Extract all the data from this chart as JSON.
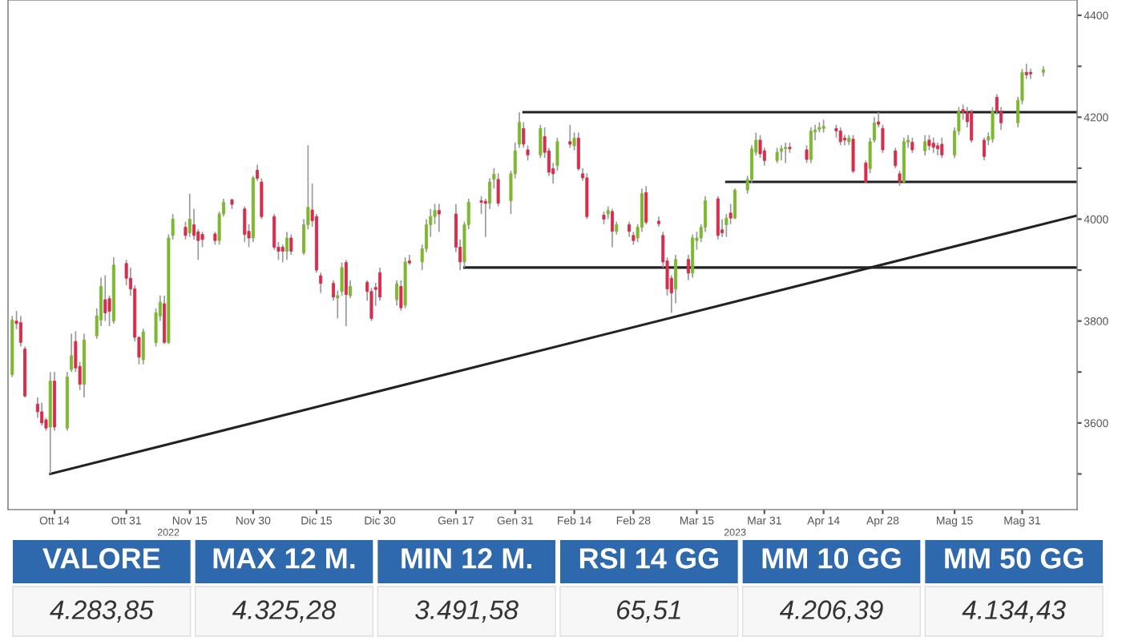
{
  "chart_data": {
    "type": "candlestick",
    "x": [
      "2022-10-04",
      "2022-10-05",
      "2022-10-06",
      "2022-10-07",
      "2022-10-10",
      "2022-10-11",
      "2022-10-12",
      "2022-10-13",
      "2022-10-14",
      "2022-10-17",
      "2022-10-18",
      "2022-10-19",
      "2022-10-20",
      "2022-10-21",
      "2022-10-24",
      "2022-10-25",
      "2022-10-26",
      "2022-10-27",
      "2022-10-28",
      "2022-10-31",
      "2022-11-01",
      "2022-11-02",
      "2022-11-03",
      "2022-11-04",
      "2022-11-07",
      "2022-11-08",
      "2022-11-09",
      "2022-11-10",
      "2022-11-11",
      "2022-11-14",
      "2022-11-15",
      "2022-11-16",
      "2022-11-17",
      "2022-11-18",
      "2022-11-21",
      "2022-11-22",
      "2022-11-23",
      "2022-11-25",
      "2022-11-28",
      "2022-11-29",
      "2022-11-30",
      "2022-12-01",
      "2022-12-02",
      "2022-12-05",
      "2022-12-06",
      "2022-12-07",
      "2022-12-08",
      "2022-12-09",
      "2022-12-12",
      "2022-12-13",
      "2022-12-14",
      "2022-12-15",
      "2022-12-16",
      "2022-12-19",
      "2022-12-20",
      "2022-12-21",
      "2022-12-22",
      "2022-12-23",
      "2022-12-27",
      "2022-12-28",
      "2022-12-29",
      "2022-12-30",
      "2023-01-03",
      "2023-01-04",
      "2023-01-05",
      "2023-01-06",
      "2023-01-09",
      "2023-01-10",
      "2023-01-11",
      "2023-01-12",
      "2023-01-13",
      "2023-01-17",
      "2023-01-18",
      "2023-01-19",
      "2023-01-20",
      "2023-01-23",
      "2023-01-24",
      "2023-01-25",
      "2023-01-26",
      "2023-01-27",
      "2023-01-30",
      "2023-01-31",
      "2023-02-01",
      "2023-02-02",
      "2023-02-03",
      "2023-02-06",
      "2023-02-07",
      "2023-02-08",
      "2023-02-09",
      "2023-02-10",
      "2023-02-13",
      "2023-02-14",
      "2023-02-15",
      "2023-02-16",
      "2023-02-17",
      "2023-02-21",
      "2023-02-22",
      "2023-02-23",
      "2023-02-24",
      "2023-02-27",
      "2023-02-28",
      "2023-03-01",
      "2023-03-02",
      "2023-03-03",
      "2023-03-06",
      "2023-03-07",
      "2023-03-08",
      "2023-03-09",
      "2023-03-10",
      "2023-03-13",
      "2023-03-14",
      "2023-03-15",
      "2023-03-16",
      "2023-03-17",
      "2023-03-20",
      "2023-03-21",
      "2023-03-22",
      "2023-03-23",
      "2023-03-24",
      "2023-03-27",
      "2023-03-28",
      "2023-03-29",
      "2023-03-30",
      "2023-03-31",
      "2023-04-03",
      "2023-04-04",
      "2023-04-05",
      "2023-04-06",
      "2023-04-10",
      "2023-04-11",
      "2023-04-12",
      "2023-04-13",
      "2023-04-14",
      "2023-04-17",
      "2023-04-18",
      "2023-04-19",
      "2023-04-20",
      "2023-04-21",
      "2023-04-24",
      "2023-04-25",
      "2023-04-26",
      "2023-04-27",
      "2023-04-28",
      "2023-05-01",
      "2023-05-02",
      "2023-05-03",
      "2023-05-04",
      "2023-05-05",
      "2023-05-08",
      "2023-05-09",
      "2023-05-10",
      "2023-05-11",
      "2023-05-12",
      "2023-05-15",
      "2023-05-16",
      "2023-05-17",
      "2023-05-18",
      "2023-05-19",
      "2023-05-22",
      "2023-05-23",
      "2023-05-24",
      "2023-05-25",
      "2023-05-26",
      "2023-05-30",
      "2023-05-31",
      "2023-06-01",
      "2023-06-02",
      "2023-06-05"
    ],
    "ohlc": [
      [
        3695,
        3810,
        3690,
        3802
      ],
      [
        3800,
        3820,
        3784,
        3795
      ],
      [
        3797,
        3810,
        3750,
        3758
      ],
      [
        3745,
        3750,
        3650,
        3653
      ],
      [
        3637,
        3650,
        3610,
        3622
      ],
      [
        3622,
        3640,
        3595,
        3600
      ],
      [
        3606,
        3610,
        3585,
        3590
      ],
      [
        3592,
        3700,
        3500,
        3682
      ],
      [
        3682,
        3700,
        3585,
        3592
      ],
      [
        3590,
        3700,
        3585,
        3690
      ],
      [
        3705,
        3775,
        3700,
        3732
      ],
      [
        3760,
        3780,
        3700,
        3708
      ],
      [
        3711,
        3720,
        3665,
        3676
      ],
      [
        3676,
        3775,
        3650,
        3763
      ],
      [
        3771,
        3825,
        3765,
        3810
      ],
      [
        3802,
        3885,
        3790,
        3868
      ],
      [
        3842,
        3890,
        3800,
        3816
      ],
      [
        3844,
        3850,
        3790,
        3819
      ],
      [
        3800,
        3925,
        3795,
        3910
      ],
      [
        3913,
        3920,
        3870,
        3884
      ],
      [
        3884,
        3905,
        3850,
        3863
      ],
      [
        3863,
        3870,
        3760,
        3768
      ],
      [
        3768,
        3770,
        3715,
        3729
      ],
      [
        3724,
        3785,
        3715,
        3779
      ],
      [
        3758,
        3825,
        3750,
        3816
      ],
      [
        3810,
        3850,
        3800,
        3837
      ],
      [
        3834,
        3850,
        3755,
        3758
      ],
      [
        3758,
        3970,
        3755,
        3963
      ],
      [
        3968,
        4010,
        3960,
        4000
      ],
      [
        3984,
        3995,
        3960,
        3968
      ],
      [
        3973,
        4050,
        3965,
        4000
      ],
      [
        3989,
        4020,
        3960,
        3968
      ],
      [
        3975,
        3980,
        3920,
        3958
      ],
      [
        3970,
        3975,
        3945,
        3960
      ],
      [
        3971,
        3975,
        3950,
        3958
      ],
      [
        3958,
        4015,
        3950,
        4010
      ],
      [
        4010,
        4040,
        4005,
        4033
      ],
      [
        4038,
        4040,
        4020,
        4029
      ],
      [
        4020,
        4025,
        3955,
        3970
      ],
      [
        3976,
        3990,
        3945,
        3963
      ],
      [
        3963,
        4085,
        3955,
        4081
      ],
      [
        4096,
        4107,
        4075,
        4080
      ],
      [
        4073,
        4080,
        4000,
        4005
      ],
      [
        4005,
        4010,
        3940,
        3945
      ],
      [
        3945,
        3955,
        3920,
        3937
      ],
      [
        3945,
        3950,
        3915,
        3937
      ],
      [
        3937,
        3975,
        3920,
        3963
      ],
      [
        3963,
        3970,
        3930,
        3937
      ],
      [
        3934,
        4000,
        3930,
        3989
      ],
      [
        3989,
        4145,
        3980,
        4023
      ],
      [
        4018,
        4070,
        3985,
        3997
      ],
      [
        4005,
        4010,
        3895,
        3900
      ],
      [
        3889,
        3895,
        3855,
        3874
      ],
      [
        3874,
        3880,
        3840,
        3847
      ],
      [
        3845,
        3860,
        3805,
        3850
      ],
      [
        3858,
        3915,
        3850,
        3905
      ],
      [
        3915,
        3920,
        3790,
        3852
      ],
      [
        3850,
        3880,
        3845,
        3868
      ],
      [
        3876,
        3880,
        3840,
        3858
      ],
      [
        3858,
        3865,
        3800,
        3805
      ],
      [
        3866,
        3875,
        3830,
        3862
      ],
      [
        3895,
        3905,
        3840,
        3847
      ],
      [
        3842,
        3880,
        3830,
        3873
      ],
      [
        3868,
        3880,
        3820,
        3826
      ],
      [
        3831,
        3925,
        3825,
        3916
      ],
      [
        3918,
        3930,
        3910,
        3914
      ],
      [
        3916,
        3950,
        3900,
        3942
      ],
      [
        3942,
        4000,
        3935,
        3989
      ],
      [
        3989,
        4020,
        3965,
        4005
      ],
      [
        4005,
        4030,
        3990,
        4017
      ],
      [
        4017,
        4030,
        3975,
        4010
      ],
      [
        4010,
        4030,
        3935,
        3945
      ],
      [
        3945,
        3960,
        3900,
        3916
      ],
      [
        3916,
        3995,
        3905,
        3989
      ],
      [
        3989,
        4040,
        3980,
        4033
      ],
      [
        4036,
        4045,
        4010,
        4033
      ],
      [
        4035,
        4040,
        3965,
        4031
      ],
      [
        4031,
        4080,
        4020,
        4073
      ],
      [
        4078,
        4100,
        4060,
        4088
      ],
      [
        4078,
        4090,
        4025,
        4031
      ],
      [
        4036,
        4095,
        4010,
        4089
      ],
      [
        4089,
        4150,
        4080,
        4134
      ],
      [
        4147,
        4210,
        4140,
        4190
      ],
      [
        4178,
        4190,
        4140,
        4147
      ],
      [
        4136,
        4145,
        4115,
        4126
      ],
      [
        4126,
        4185,
        4120,
        4178
      ],
      [
        4162,
        4180,
        4120,
        4131
      ],
      [
        4134,
        4140,
        4085,
        4092
      ],
      [
        4099,
        4110,
        4070,
        4089
      ],
      [
        4105,
        4160,
        4095,
        4152
      ],
      [
        4152,
        4185,
        4140,
        4147
      ],
      [
        4144,
        4170,
        4135,
        4159
      ],
      [
        4159,
        4170,
        4095,
        4099
      ],
      [
        4089,
        4100,
        4075,
        4081
      ],
      [
        4081,
        4090,
        4000,
        4005
      ],
      [
        4008,
        4015,
        3990,
        4000
      ],
      [
        4010,
        4025,
        4000,
        4017
      ],
      [
        4015,
        4020,
        3945,
        3976
      ],
      [
        3976,
        3995,
        3970,
        3989
      ],
      [
        3989,
        3995,
        3965,
        3976
      ],
      [
        3968,
        3975,
        3950,
        3958
      ],
      [
        3963,
        3990,
        3955,
        3984
      ],
      [
        3984,
        4060,
        3975,
        4050
      ],
      [
        4052,
        4065,
        3990,
        3994
      ],
      [
        3996,
        4005,
        3985,
        3991
      ],
      [
        3968,
        3975,
        3905,
        3916
      ],
      [
        3918,
        3925,
        3850,
        3863
      ],
      [
        3884,
        3890,
        3816,
        3855
      ],
      [
        3863,
        3930,
        3835,
        3921
      ],
      [
        3921,
        3930,
        3880,
        3894
      ],
      [
        3894,
        3970,
        3885,
        3963
      ],
      [
        3958,
        3975,
        3940,
        3963
      ],
      [
        3963,
        3990,
        3955,
        3984
      ],
      [
        3984,
        4045,
        3975,
        4036
      ],
      [
        4040,
        4045,
        3960,
        3968
      ],
      [
        3979,
        4000,
        3965,
        3973
      ],
      [
        3989,
        4010,
        3965,
        4002
      ],
      [
        4012,
        4030,
        3990,
        4002
      ],
      [
        4002,
        4060,
        4000,
        4057
      ],
      [
        4057,
        4085,
        4050,
        4078
      ],
      [
        4078,
        4145,
        4070,
        4138
      ],
      [
        4131,
        4170,
        4125,
        4155
      ],
      [
        4155,
        4165,
        4120,
        4128
      ],
      [
        4134,
        4140,
        4105,
        4115
      ],
      [
        4115,
        4140,
        4110,
        4131
      ],
      [
        4133,
        4145,
        4115,
        4138
      ],
      [
        4138,
        4150,
        4110,
        4141
      ],
      [
        4141,
        4150,
        4130,
        4138
      ],
      [
        4136,
        4145,
        4110,
        4117
      ],
      [
        4117,
        4180,
        4110,
        4173
      ],
      [
        4171,
        4185,
        4155,
        4175
      ],
      [
        4176,
        4190,
        4170,
        4180
      ],
      [
        4178,
        4195,
        4170,
        4182
      ],
      [
        4178,
        4185,
        4160,
        4173
      ],
      [
        4173,
        4180,
        4145,
        4152
      ],
      [
        4159,
        4165,
        4145,
        4155
      ],
      [
        4152,
        4165,
        4145,
        4159
      ],
      [
        4157,
        4165,
        4090,
        4094
      ],
      [
        4110,
        4115,
        4070,
        4073
      ],
      [
        4099,
        4160,
        4090,
        4152
      ],
      [
        4155,
        4200,
        4150,
        4189
      ],
      [
        4191,
        4210,
        4180,
        4186
      ],
      [
        4178,
        4185,
        4130,
        4136
      ],
      [
        4134,
        4140,
        4100,
        4105
      ],
      [
        4089,
        4095,
        4065,
        4073
      ],
      [
        4073,
        4160,
        4070,
        4152
      ],
      [
        4151,
        4165,
        4140,
        4155
      ],
      [
        4151,
        4160,
        4130,
        4136
      ],
      [
        4134,
        4165,
        4125,
        4152
      ],
      [
        4155,
        4165,
        4135,
        4144
      ],
      [
        4149,
        4160,
        4130,
        4141
      ],
      [
        4144,
        4150,
        4125,
        4138
      ],
      [
        4147,
        4160,
        4120,
        4126
      ],
      [
        4126,
        4180,
        4120,
        4173
      ],
      [
        4173,
        4220,
        4165,
        4212
      ],
      [
        4215,
        4225,
        4195,
        4210
      ],
      [
        4210,
        4220,
        4180,
        4191
      ],
      [
        4210,
        4215,
        4150,
        4155
      ],
      [
        4155,
        4160,
        4115,
        4123
      ],
      [
        4155,
        4170,
        4145,
        4162
      ],
      [
        4157,
        4220,
        4150,
        4212
      ],
      [
        4239,
        4245,
        4205,
        4212
      ],
      [
        4212,
        4220,
        4175,
        4189
      ],
      [
        4189,
        4240,
        4180,
        4233
      ],
      [
        4233,
        4295,
        4225,
        4288
      ],
      [
        4288,
        4305,
        4275,
        4283
      ],
      [
        4288,
        4295,
        4275,
        4285
      ],
      [
        4288,
        4300,
        4280,
        4293
      ]
    ],
    "colors": [
      "#7cb82f",
      "#d62d4b",
      "#d62d4b",
      "#d62d4b",
      "#d62d4b",
      "#d62d4b",
      "#d62d4b",
      "#7cb82f",
      "#d62d4b",
      "#7cb82f",
      "#7cb82f",
      "#d62d4b",
      "#d62d4b",
      "#7cb82f",
      "#7cb82f",
      "#7cb82f",
      "#d62d4b",
      "#d62d4b",
      "#7cb82f",
      "#d62d4b",
      "#d62d4b",
      "#d62d4b",
      "#d62d4b",
      "#7cb82f",
      "#7cb82f",
      "#7cb82f",
      "#d62d4b",
      "#7cb82f",
      "#7cb82f",
      "#d62d4b",
      "#7cb82f",
      "#d62d4b",
      "#d62d4b",
      "#d62d4b",
      "#d62d4b",
      "#7cb82f",
      "#7cb82f",
      "#d62d4b",
      "#d62d4b",
      "#d62d4b",
      "#7cb82f",
      "#d62d4b",
      "#d62d4b",
      "#d62d4b",
      "#d62d4b",
      "#d62d4b",
      "#7cb82f",
      "#d62d4b",
      "#7cb82f",
      "#7cb82f",
      "#d62d4b",
      "#d62d4b",
      "#d62d4b",
      "#d62d4b",
      "#7cb82f",
      "#7cb82f",
      "#d62d4b",
      "#7cb82f",
      "#d62d4b",
      "#d62d4b",
      "#d62d4b",
      "#d62d4b",
      "#7cb82f",
      "#d62d4b",
      "#7cb82f",
      "#d62d4b",
      "#7cb82f",
      "#7cb82f",
      "#7cb82f",
      "#7cb82f",
      "#d62d4b",
      "#d62d4b",
      "#d62d4b",
      "#7cb82f",
      "#7cb82f",
      "#d62d4b",
      "#d62d4b",
      "#7cb82f",
      "#7cb82f",
      "#d62d4b",
      "#7cb82f",
      "#7cb82f",
      "#7cb82f",
      "#d62d4b",
      "#d62d4b",
      "#7cb82f",
      "#d62d4b",
      "#d62d4b",
      "#d62d4b",
      "#7cb82f",
      "#d62d4b",
      "#7cb82f",
      "#d62d4b",
      "#d62d4b",
      "#d62d4b",
      "#d62d4b",
      "#7cb82f",
      "#d62d4b",
      "#7cb82f",
      "#d62d4b",
      "#d62d4b",
      "#7cb82f",
      "#7cb82f",
      "#d62d4b",
      "#d62d4b",
      "#d62d4b",
      "#d62d4b",
      "#d62d4b",
      "#7cb82f",
      "#d62d4b",
      "#7cb82f",
      "#7cb82f",
      "#7cb82f",
      "#7cb82f",
      "#d62d4b",
      "#d62d4b",
      "#7cb82f",
      "#d62d4b",
      "#7cb82f",
      "#7cb82f",
      "#7cb82f",
      "#7cb82f",
      "#d62d4b",
      "#d62d4b",
      "#7cb82f",
      "#7cb82f",
      "#7cb82f",
      "#d62d4b",
      "#d62d4b",
      "#7cb82f",
      "#7cb82f",
      "#7cb82f",
      "#7cb82f",
      "#d62d4b",
      "#d62d4b",
      "#d62d4b",
      "#7cb82f",
      "#d62d4b",
      "#d62d4b",
      "#7cb82f",
      "#7cb82f",
      "#d62d4b",
      "#d62d4b",
      "#d62d4b",
      "#d62d4b",
      "#7cb82f",
      "#7cb82f",
      "#d62d4b",
      "#7cb82f",
      "#d62d4b",
      "#d62d4b",
      "#d62d4b",
      "#d62d4b",
      "#7cb82f",
      "#7cb82f",
      "#d62d4b",
      "#d62d4b",
      "#d62d4b",
      "#d62d4b",
      "#7cb82f",
      "#7cb82f",
      "#d62d4b",
      "#d62d4b",
      "#7cb82f",
      "#7cb82f",
      "#d62d4b",
      "#d62d4b",
      "#7cb82f"
    ],
    "series": [
      {
        "type": "line",
        "color": "#222222",
        "x": [
          "2022-10-13",
          "2023-06-13"
        ],
        "values": [
          3500,
          4007
        ]
      },
      {
        "type": "line",
        "color": "#222222",
        "x": [
          "2023-02-02",
          "2023-06-13"
        ],
        "values": [
          4210,
          4210
        ]
      },
      {
        "type": "line",
        "color": "#222222",
        "x": [
          "2023-03-22",
          "2023-06-13"
        ],
        "values": [
          4073,
          4073
        ]
      },
      {
        "type": "line",
        "color": "#222222",
        "x": [
          "2023-01-19",
          "2023-06-13"
        ],
        "values": [
          3905,
          3905
        ]
      }
    ],
    "xlim": [
      "2022-10-03",
      "2023-06-13"
    ],
    "xticks": [
      {
        "value": "2022-10-14",
        "label": "Ott 14"
      },
      {
        "value": "2022-10-31",
        "label": "Ott 31"
      },
      {
        "value": "2022-11-15",
        "label": "Nov 15"
      },
      {
        "value": "2022-11-30",
        "label": "Nov 30"
      },
      {
        "value": "2022-12-15",
        "label": "Dic 15"
      },
      {
        "value": "2022-12-30",
        "label": "Dic 30"
      },
      {
        "value": "2023-01-17",
        "label": "Gen 17"
      },
      {
        "value": "2023-01-31",
        "label": "Gen 31"
      },
      {
        "value": "2023-02-14",
        "label": "Feb 14"
      },
      {
        "value": "2023-02-28",
        "label": "Feb 28"
      },
      {
        "value": "2023-03-15",
        "label": "Mar 15"
      },
      {
        "value": "2023-03-31",
        "label": "Mar 31"
      },
      {
        "value": "2023-04-14",
        "label": "Apr 14"
      },
      {
        "value": "2023-04-28",
        "label": "Apr 28"
      },
      {
        "value": "2023-05-15",
        "label": "Mag 15"
      },
      {
        "value": "2023-05-31",
        "label": "Mag 31"
      }
    ],
    "ylim": [
      3430,
      4430
    ],
    "yticks": [
      {
        "value": 3500,
        "label": null
      },
      3600,
      {
        "value": 3700,
        "label": null
      },
      3800,
      {
        "value": 3900,
        "label": null
      },
      4000,
      {
        "value": 4100,
        "label": null
      },
      4200,
      {
        "value": 4300,
        "label": null
      },
      4400
    ],
    "grid": false,
    "annotations": [
      "2022",
      "2023",
      "VALORE",
      "MAX 12 M.",
      "MIN 12 M.",
      "RSI 14 GG",
      "MM 10 GG",
      "MM 50 GG",
      "4.283,85",
      "4.325,28",
      "3.491,58",
      "65,51",
      "4.206,39",
      "4.134,43"
    ]
  }
}
